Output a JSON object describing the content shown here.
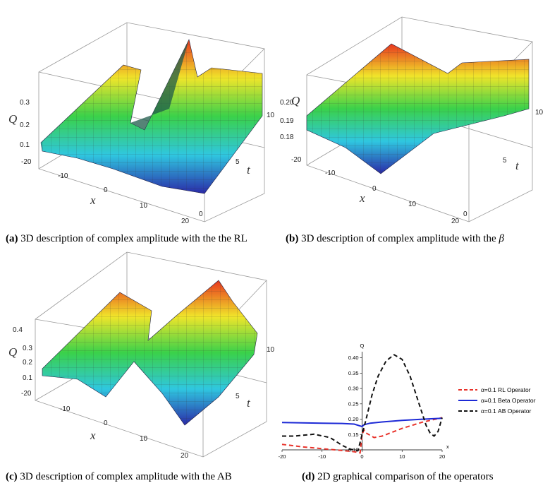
{
  "captions": {
    "a": {
      "tag": "(a)",
      "text": " 3D description of complex amplitude with the the RL"
    },
    "b": {
      "tag": "(b)",
      "text": " 3D description of complex amplitude with the ",
      "symbol": "β"
    },
    "c": {
      "tag": "(c)",
      "text": " 3D description of complex amplitude with the AB"
    },
    "d": {
      "tag": "(d)",
      "text": " 2D graphical comparison of the operators"
    }
  },
  "plots3d": {
    "a": {
      "zlabel": "Q",
      "xlabel": "x",
      "tlabel": "t",
      "zticks": [
        "0.3",
        "0.2",
        "0.1"
      ],
      "xticks": [
        "-20",
        "-10",
        "0",
        "10",
        "20"
      ],
      "tticks": [
        "0",
        "5",
        "10"
      ]
    },
    "b": {
      "zlabel": "Q",
      "xlabel": "x",
      "tlabel": "t",
      "zticks": [
        "0.20",
        "0.19",
        "0.18"
      ],
      "xticks": [
        "-20",
        "-10",
        "0",
        "10",
        "20"
      ],
      "tticks": [
        "0",
        "5",
        "10"
      ]
    },
    "c": {
      "zlabel": "Q",
      "xlabel": "x",
      "tlabel": "t",
      "zticks": [
        "0.4",
        "0.3",
        "0.2",
        "0.1"
      ],
      "xticks": [
        "-20",
        "-10",
        "0",
        "10",
        "20"
      ],
      "tticks": [
        "5",
        "10"
      ]
    }
  },
  "chart_data": {
    "type": "line",
    "title": "",
    "xlabel": "x",
    "ylabel": "Q",
    "xlim": [
      -20,
      20
    ],
    "ylim": [
      0.1,
      0.42
    ],
    "xticks": [
      -20,
      -10,
      0,
      10,
      20
    ],
    "yticks": [
      0.1,
      0.15,
      0.2,
      0.25,
      0.3,
      0.35,
      0.4
    ],
    "xtick_labels": [
      "-20",
      "-10",
      "0",
      "10",
      "20"
    ],
    "ytick_labels": [
      "0.10",
      "0.15",
      "0.20",
      "0.25",
      "0.30",
      "0.35",
      "0.40"
    ],
    "legend_position": "right",
    "series": [
      {
        "name": "α=0.1 RL Operator",
        "color": "#e8322a",
        "dash": "dashed",
        "x": [
          -20,
          -15,
          -10,
          -5,
          -2,
          -0.5,
          0,
          0.5,
          1,
          3,
          5,
          10,
          15,
          20
        ],
        "y": [
          0.118,
          0.11,
          0.104,
          0.098,
          0.094,
          0.09,
          0.15,
          0.165,
          0.155,
          0.14,
          0.145,
          0.17,
          0.19,
          0.205
        ]
      },
      {
        "name": "α=0.1 Beta Operator",
        "color": "#1d2ad6",
        "dash": "solid",
        "x": [
          -20,
          -15,
          -10,
          -5,
          -2,
          0,
          0.5,
          2,
          5,
          10,
          15,
          20
        ],
        "y": [
          0.189,
          0.188,
          0.187,
          0.186,
          0.184,
          0.176,
          0.182,
          0.187,
          0.191,
          0.196,
          0.2,
          0.203
        ]
      },
      {
        "name": "α=0.1 AB Operator",
        "color": "#111111",
        "dash": "dashed",
        "x": [
          -20,
          -17,
          -12,
          -8,
          -5,
          -3,
          -1,
          0,
          1,
          2.5,
          4,
          6,
          8,
          10,
          12,
          14,
          16,
          17,
          18,
          19,
          20
        ],
        "y": [
          0.145,
          0.145,
          0.151,
          0.14,
          0.115,
          0.102,
          0.098,
          0.15,
          0.2,
          0.28,
          0.34,
          0.39,
          0.41,
          0.395,
          0.34,
          0.26,
          0.18,
          0.155,
          0.145,
          0.16,
          0.205
        ]
      }
    ]
  }
}
